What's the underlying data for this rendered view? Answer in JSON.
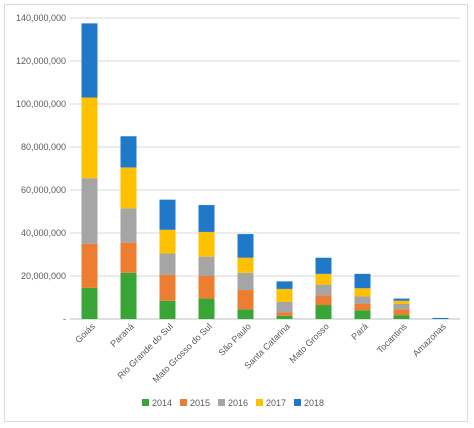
{
  "chart_data": {
    "type": "bar",
    "stacked": true,
    "title": "",
    "xlabel": "",
    "ylabel": "",
    "ylim": [
      0,
      140000000
    ],
    "y_ticks": [
      0,
      20000000,
      40000000,
      60000000,
      80000000,
      100000000,
      120000000,
      140000000
    ],
    "y_tick_labels": [
      "-",
      "20,000,000",
      "40,000,000",
      "60,000,000",
      "80,000,000",
      "100,000,000",
      "120,000,000",
      "140,000,000"
    ],
    "grid": true,
    "legend_position": "bottom",
    "categories": [
      "Goiás",
      "Paraná",
      "Rio Grande do Sul",
      "Mato Grosso do Sul",
      "São Paulo",
      "Santa Catarina",
      "Mato Grosso",
      "Pará",
      "Tocantins",
      "Amazonas"
    ],
    "series": [
      {
        "name": "2014",
        "color": "#3aa537",
        "values": [
          14500000,
          21500000,
          8500000,
          9500000,
          4500000,
          1500000,
          6500000,
          4000000,
          1800000,
          0
        ]
      },
      {
        "name": "2015",
        "color": "#ed7d31",
        "values": [
          20500000,
          14000000,
          12000000,
          10500000,
          9000000,
          1500000,
          4500000,
          3000000,
          2700000,
          0
        ]
      },
      {
        "name": "2016",
        "color": "#a5a5a5",
        "values": [
          30500000,
          16000000,
          10000000,
          9000000,
          8000000,
          5000000,
          5000000,
          3500000,
          2500000,
          0
        ]
      },
      {
        "name": "2017",
        "color": "#ffc000",
        "values": [
          37500000,
          19000000,
          11000000,
          11500000,
          7000000,
          6000000,
          5000000,
          3800000,
          1500000,
          0
        ]
      },
      {
        "name": "2018",
        "color": "#1f78c8",
        "values": [
          34500000,
          14500000,
          14000000,
          12500000,
          11000000,
          3500000,
          7500000,
          6700000,
          1000000,
          500000
        ]
      }
    ]
  }
}
